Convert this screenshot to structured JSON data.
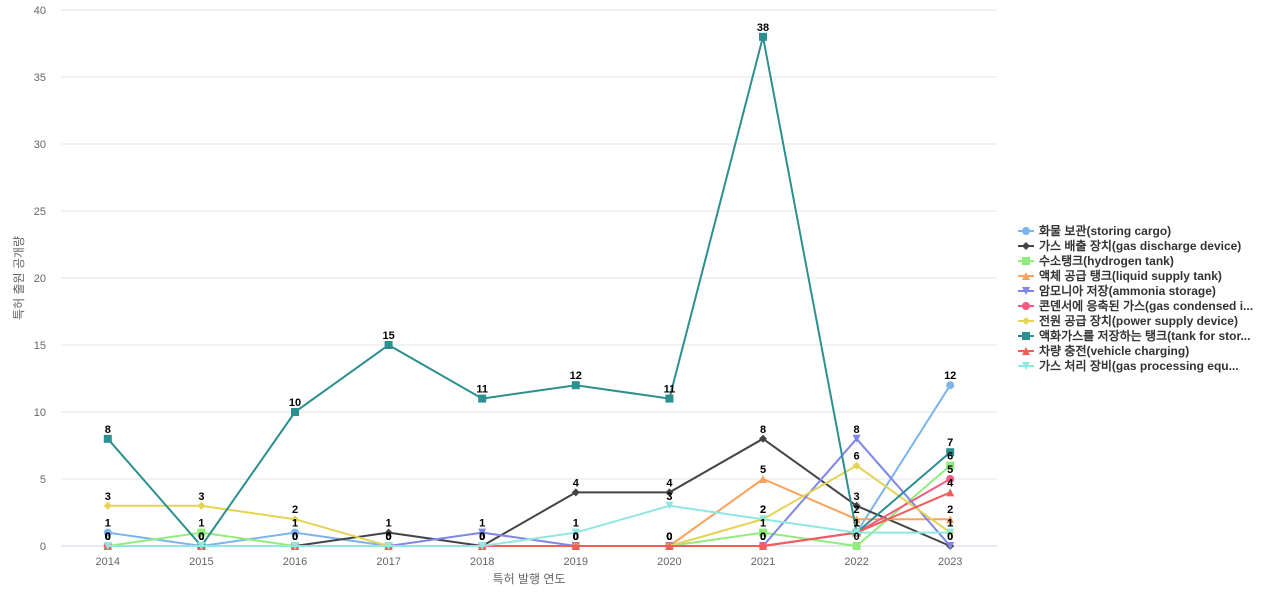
{
  "chart_data": {
    "type": "line",
    "title": "",
    "xlabel": "특허 발행 연도",
    "ylabel": "특허 출원 공개량",
    "ylim": [
      0,
      40
    ],
    "yticks": [
      0,
      5,
      10,
      15,
      20,
      25,
      30,
      35,
      40
    ],
    "grid": true,
    "legend_position": "right",
    "x": [
      "2014",
      "2015",
      "2016",
      "2017",
      "2018",
      "2019",
      "2020",
      "2021",
      "2022",
      "2023"
    ],
    "series": [
      {
        "name": "화물 보관(storing cargo)",
        "color": "#7cb5ec",
        "marker": "circle",
        "values": [
          1,
          0,
          1,
          0,
          0,
          0,
          0,
          0,
          1,
          12
        ]
      },
      {
        "name": "가스 배출 장치(gas discharge device)",
        "color": "#434348",
        "marker": "diamond",
        "values": [
          0,
          0,
          0,
          1,
          0,
          4,
          4,
          8,
          3,
          0
        ]
      },
      {
        "name": "수소탱크(hydrogen tank)",
        "color": "#90ed7d",
        "marker": "square",
        "values": [
          0,
          1,
          0,
          0,
          0,
          0,
          0,
          1,
          0,
          6
        ]
      },
      {
        "name": "액체 공급 탱크(liquid supply tank)",
        "color": "#f7a35c",
        "marker": "triangle",
        "values": [
          0,
          0,
          0,
          0,
          0,
          0,
          0,
          5,
          2,
          2
        ]
      },
      {
        "name": "암모니아 저장(ammonia storage)",
        "color": "#8085e9",
        "marker": "triangle-down",
        "values": [
          0,
          0,
          0,
          0,
          1,
          0,
          0,
          0,
          8,
          0
        ]
      },
      {
        "name": "콘덴서에 응축된 가스(gas condensed i...",
        "color": "#f15c80",
        "marker": "circle",
        "values": [
          0,
          0,
          0,
          0,
          0,
          0,
          0,
          0,
          1,
          5
        ]
      },
      {
        "name": "전원 공급 장치(power supply device)",
        "color": "#e4d354",
        "marker": "diamond",
        "values": [
          3,
          3,
          2,
          0,
          0,
          0,
          0,
          2,
          6,
          1
        ]
      },
      {
        "name": "액화가스를 저장하는 탱크(tank for stor...",
        "color": "#2b908f",
        "marker": "square",
        "values": [
          8,
          0,
          10,
          15,
          11,
          12,
          11,
          38,
          1,
          7
        ]
      },
      {
        "name": "차량 충전(vehicle charging)",
        "color": "#f45b5b",
        "marker": "triangle",
        "values": [
          0,
          0,
          0,
          0,
          0,
          0,
          0,
          0,
          1,
          4
        ]
      },
      {
        "name": "가스 처리 장비(gas processing equ...",
        "color": "#91e8e1",
        "marker": "triangle-down",
        "values": [
          0,
          0,
          0,
          0,
          0,
          1,
          3,
          2,
          1,
          1
        ]
      }
    ]
  }
}
